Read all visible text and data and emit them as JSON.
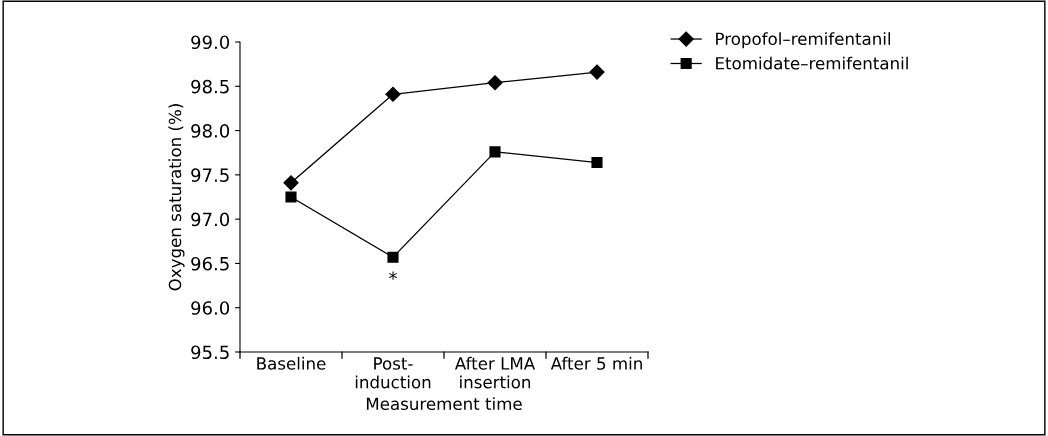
{
  "chart_data": {
    "type": "line",
    "xlabel": "Measurement time",
    "ylabel": "Oxygen saturation (%)",
    "categories": [
      "Baseline",
      "Post-\ninduction",
      "After LMA\ninsertion",
      "After 5 min"
    ],
    "series": [
      {
        "name": "Propofol–remifentanil",
        "color": "#000000",
        "marker": "diamond",
        "values": [
          97.41,
          98.41,
          98.54,
          98.66
        ]
      },
      {
        "name": "Etomidate–remifentanil",
        "color": "#000000",
        "marker": "square",
        "values": [
          97.25,
          96.57,
          97.76,
          97.64
        ]
      }
    ],
    "ylim": [
      95.5,
      99.0
    ],
    "yticks": [
      {
        "value": 95.5,
        "label": "95.5"
      },
      {
        "value": 96.0,
        "label": "96.0"
      },
      {
        "value": 96.5,
        "label": "96.5"
      },
      {
        "value": 97.0,
        "label": "97.0"
      },
      {
        "value": 97.5,
        "label": "97.5"
      },
      {
        "value": 98.0,
        "label": "98.0"
      },
      {
        "value": 98.5,
        "label": "98.5"
      },
      {
        "value": 99.0,
        "label": "99.0"
      }
    ],
    "annotations": [
      {
        "text": "*",
        "x": "Post-\ninduction",
        "y": 96.57
      }
    ],
    "grid": false,
    "legend": "top right",
    "line_style": "solid"
  }
}
